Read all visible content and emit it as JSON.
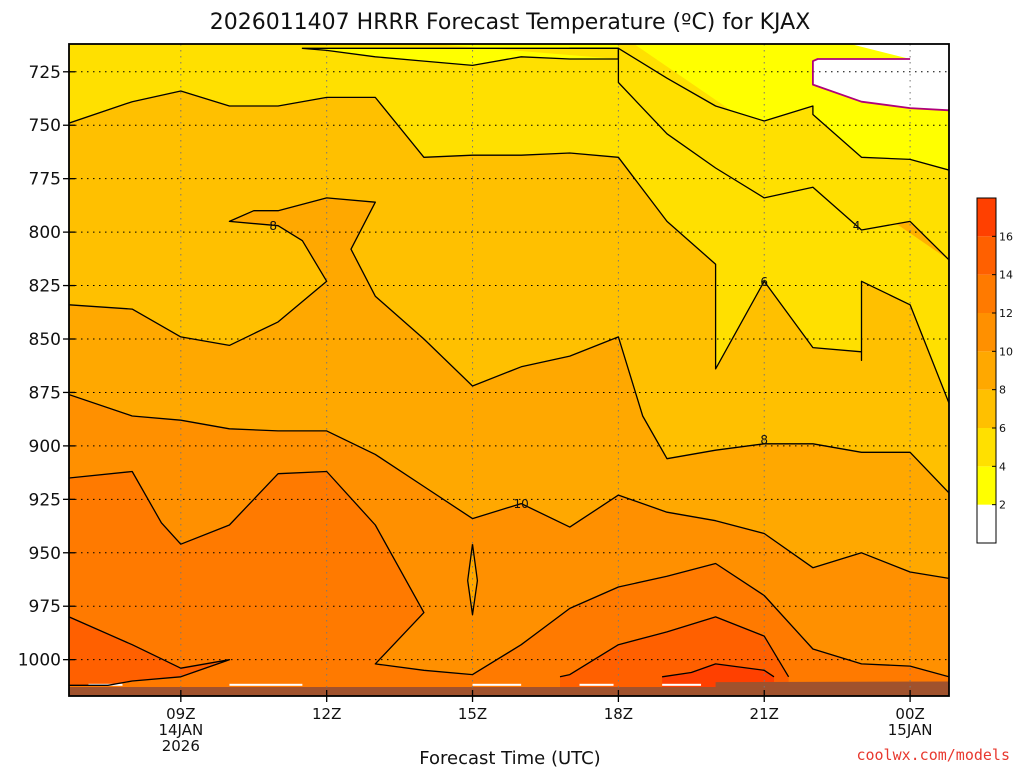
{
  "chart_data": {
    "type": "contour",
    "title": "2026011407 HRRR Forecast Temperature (ºC) for KJAX",
    "xlabel": "Forecast Time (UTC)",
    "ylabel": "",
    "y_axis": {
      "ticks": [
        725,
        750,
        775,
        800,
        825,
        850,
        875,
        900,
        925,
        950,
        975,
        1000
      ],
      "range": [
        712,
        1017
      ],
      "inverted": true,
      "units": "hPa"
    },
    "x_axis": {
      "range_hours": [
        6.7,
        24.8
      ],
      "ticks": [
        {
          "hour": 9,
          "lines": [
            "09Z",
            "14JAN",
            "2026"
          ]
        },
        {
          "hour": 12,
          "lines": [
            "12Z"
          ]
        },
        {
          "hour": 15,
          "lines": [
            "15Z"
          ]
        },
        {
          "hour": 18,
          "lines": [
            "18Z"
          ]
        },
        {
          "hour": 21,
          "lines": [
            "21Z"
          ]
        },
        {
          "hour": 24,
          "lines": [
            "00Z",
            "15JAN"
          ]
        }
      ]
    },
    "grid": true,
    "colorbar": {
      "placement": "right",
      "levels": [
        0,
        2,
        4,
        6,
        8,
        10,
        12,
        14,
        16,
        18
      ],
      "tick_labels": [
        "2",
        "4",
        "6",
        "8",
        "10",
        "12",
        "14",
        "16"
      ],
      "colors": [
        "#ffffff",
        "#ffff00",
        "#ffe000",
        "#ffc000",
        "#ffa800",
        "#ff9000",
        "#ff7a00",
        "#ff6000",
        "#ff4000"
      ]
    },
    "contour_labels": [
      {
        "text": "8",
        "hour": 10.9,
        "p": 797
      },
      {
        "text": "4",
        "hour": 22.9,
        "p": 797
      },
      {
        "text": "6",
        "hour": 21.0,
        "p": 823
      },
      {
        "text": "8",
        "hour": 21.0,
        "p": 897
      },
      {
        "text": "10",
        "hour": 16.0,
        "p": 927
      }
    ],
    "contours": [
      {
        "level": 2,
        "color": "#b0007a",
        "points": [
          [
            24.0,
            719
          ],
          [
            24.0,
            719
          ],
          [
            23.0,
            719
          ],
          [
            22.1,
            719
          ],
          [
            22.0,
            720
          ],
          [
            22.0,
            728
          ],
          [
            22.0,
            731
          ],
          [
            23.0,
            739
          ],
          [
            24.0,
            742
          ],
          [
            24.8,
            743
          ]
        ]
      },
      {
        "level": 4,
        "color": "#000000",
        "points": [
          [
            18.0,
            719
          ],
          [
            18.0,
            715
          ],
          [
            18.0,
            714
          ],
          [
            17.0,
            714
          ],
          [
            16.0,
            714
          ],
          [
            15.0,
            714
          ],
          [
            14.0,
            714
          ],
          [
            12.0,
            714
          ],
          [
            11.5,
            714
          ],
          [
            12.0,
            715
          ],
          [
            13.0,
            718
          ],
          [
            14.0,
            720
          ],
          [
            15.0,
            722
          ],
          [
            16.0,
            718
          ],
          [
            16.0,
            718
          ],
          [
            17.0,
            719
          ],
          [
            18.0,
            719
          ]
        ]
      },
      {
        "level": 4,
        "color": "#000000",
        "points": [
          [
            24.8,
            771
          ],
          [
            24.0,
            766
          ],
          [
            23.0,
            765
          ],
          [
            22.0,
            745
          ],
          [
            22.0,
            741
          ],
          [
            21.0,
            748
          ],
          [
            20.0,
            741
          ],
          [
            19.0,
            728
          ],
          [
            18.0,
            714
          ],
          [
            17.0,
            714
          ],
          [
            18.0,
            714
          ],
          [
            18.0,
            719
          ],
          [
            18.0,
            730
          ],
          [
            19.0,
            754
          ],
          [
            20.0,
            770
          ],
          [
            21.0,
            784
          ],
          [
            22.0,
            779
          ],
          [
            23.0,
            799
          ],
          [
            24.0,
            795
          ],
          [
            24.8,
            813
          ]
        ]
      },
      {
        "level": 6,
        "color": "#000000",
        "points": [
          [
            6.7,
            749
          ],
          [
            8.0,
            739
          ],
          [
            9.0,
            734
          ],
          [
            10.0,
            741
          ],
          [
            11.0,
            741
          ],
          [
            12.0,
            737
          ],
          [
            13.0,
            737
          ],
          [
            14.0,
            765
          ],
          [
            15.0,
            764
          ],
          [
            16.0,
            764
          ],
          [
            17.0,
            763
          ],
          [
            18.0,
            765
          ],
          [
            19.0,
            795
          ],
          [
            20.0,
            815
          ],
          [
            20.0,
            864
          ],
          [
            21.0,
            823
          ],
          [
            22.0,
            854
          ],
          [
            23.0,
            856
          ],
          [
            23.0,
            860
          ],
          [
            23.0,
            823
          ],
          [
            24.0,
            834
          ],
          [
            24.8,
            880
          ]
        ]
      },
      {
        "level": 8,
        "color": "#000000",
        "points": [
          [
            6.7,
            834
          ],
          [
            8.0,
            836
          ],
          [
            9.0,
            849
          ],
          [
            10.0,
            853
          ],
          [
            11.0,
            842
          ],
          [
            12.0,
            823
          ],
          [
            11.5,
            804
          ],
          [
            11.0,
            797
          ],
          [
            10.0,
            795
          ],
          [
            10.5,
            790
          ],
          [
            11.0,
            790
          ],
          [
            12.0,
            784
          ],
          [
            13.0,
            786
          ],
          [
            12.5,
            808
          ],
          [
            13.0,
            830
          ],
          [
            14.0,
            850
          ],
          [
            15.0,
            872
          ],
          [
            16.0,
            863
          ],
          [
            17.0,
            858
          ],
          [
            18.0,
            849
          ],
          [
            18.5,
            886
          ],
          [
            19.0,
            906
          ],
          [
            20.0,
            902
          ],
          [
            21.0,
            899
          ],
          [
            22.0,
            899
          ],
          [
            23.0,
            903
          ],
          [
            24.0,
            903
          ],
          [
            24.8,
            922
          ]
        ]
      },
      {
        "level": 10,
        "color": "#000000",
        "points": [
          [
            6.7,
            876
          ],
          [
            8.0,
            886
          ],
          [
            9.0,
            888
          ],
          [
            10.0,
            892
          ],
          [
            11.0,
            893
          ],
          [
            12.0,
            893
          ],
          [
            13.0,
            904
          ],
          [
            14.0,
            919
          ],
          [
            15.0,
            934
          ],
          [
            16.0,
            927
          ],
          [
            17.0,
            938
          ],
          [
            18.0,
            923
          ],
          [
            19.0,
            931
          ],
          [
            20.0,
            935
          ],
          [
            21.0,
            941
          ],
          [
            22.0,
            957
          ],
          [
            23.0,
            950
          ],
          [
            24.0,
            959
          ],
          [
            24.8,
            962
          ]
        ]
      },
      {
        "level": 10,
        "color": "#000000",
        "points": [
          [
            15.0,
            946
          ],
          [
            15.1,
            963
          ],
          [
            15.0,
            979
          ],
          [
            14.9,
            963
          ],
          [
            15.0,
            946
          ]
        ]
      },
      {
        "level": 12,
        "color": "#000000",
        "points": [
          [
            6.7,
            915
          ],
          [
            8.0,
            912
          ],
          [
            8.6,
            936
          ],
          [
            9.0,
            946
          ],
          [
            10.0,
            937
          ],
          [
            11.0,
            913
          ],
          [
            12.0,
            912
          ],
          [
            13.0,
            937
          ],
          [
            14.0,
            978
          ],
          [
            13.0,
            1002
          ],
          [
            14.0,
            1005
          ],
          [
            15.0,
            1007
          ],
          [
            16.0,
            993
          ],
          [
            17.0,
            976
          ],
          [
            18.0,
            966
          ],
          [
            19.0,
            961
          ],
          [
            20.0,
            955
          ],
          [
            21.0,
            970
          ],
          [
            22.0,
            995
          ],
          [
            23.0,
            1002
          ],
          [
            24.0,
            1003
          ],
          [
            24.8,
            1008
          ]
        ]
      },
      {
        "level": 14,
        "color": "#000000",
        "points": [
          [
            6.7,
            980
          ],
          [
            8.0,
            993
          ],
          [
            9.0,
            1004
          ],
          [
            10.0,
            1000
          ],
          [
            9.0,
            1008
          ],
          [
            8.0,
            1010
          ],
          [
            7.5,
            1012
          ],
          [
            6.7,
            1012
          ]
        ]
      },
      {
        "level": 14,
        "color": "#000000",
        "points": [
          [
            16.8,
            1008
          ],
          [
            17.0,
            1007
          ],
          [
            18.0,
            993
          ],
          [
            19.0,
            987
          ],
          [
            20.0,
            980
          ],
          [
            21.0,
            989
          ],
          [
            21.5,
            1008
          ]
        ]
      },
      {
        "level": 16,
        "color": "#000000",
        "points": [
          [
            18.9,
            1008
          ],
          [
            19.5,
            1006
          ],
          [
            20.0,
            1002
          ],
          [
            21.0,
            1005
          ],
          [
            21.2,
            1008
          ]
        ]
      }
    ],
    "ground": {
      "color": "#a0522d",
      "surface_p": 1010
    }
  },
  "credit": "coolwx.com/models"
}
